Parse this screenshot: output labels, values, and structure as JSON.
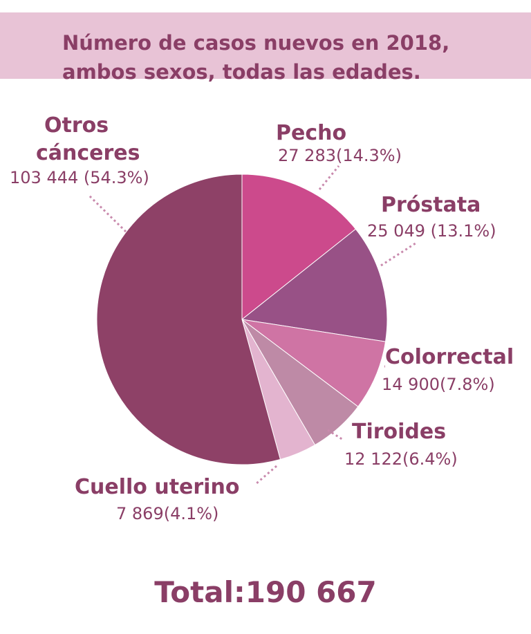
{
  "chart_data": {
    "type": "pie",
    "title_lines": [
      "Número de casos nuevos en 2018,",
      "ambos sexos, todas las edades."
    ],
    "slices": [
      {
        "name_lines": [
          "Pecho"
        ],
        "value": 27283,
        "percent": 14.3,
        "value_label": "27 283(14.3%)",
        "color": "#cc4a8c"
      },
      {
        "name_lines": [
          "Próstata"
        ],
        "value": 25049,
        "percent": 13.1,
        "value_label": "25 049 (13.1%)",
        "color": "#985186"
      },
      {
        "name_lines": [
          "Colorrectal"
        ],
        "value": 14900,
        "percent": 7.8,
        "value_label": "14 900(7.8%)",
        "color": "#cf74a4"
      },
      {
        "name_lines": [
          "Tiroides"
        ],
        "value": 12122,
        "percent": 6.4,
        "value_label": "12 122(6.4%)",
        "color": "#be8aa6"
      },
      {
        "name_lines": [
          "Cuello uterino"
        ],
        "value": 7869,
        "percent": 4.1,
        "value_label": "7 869(4.1%)",
        "color": "#e3b4cf"
      },
      {
        "name_lines": [
          "Otros",
          "cánceres"
        ],
        "value": 103444,
        "percent": 54.3,
        "value_label": "103 444 (54.3%)",
        "color": "#8e4167"
      }
    ],
    "total_label": "Total:190 667"
  }
}
